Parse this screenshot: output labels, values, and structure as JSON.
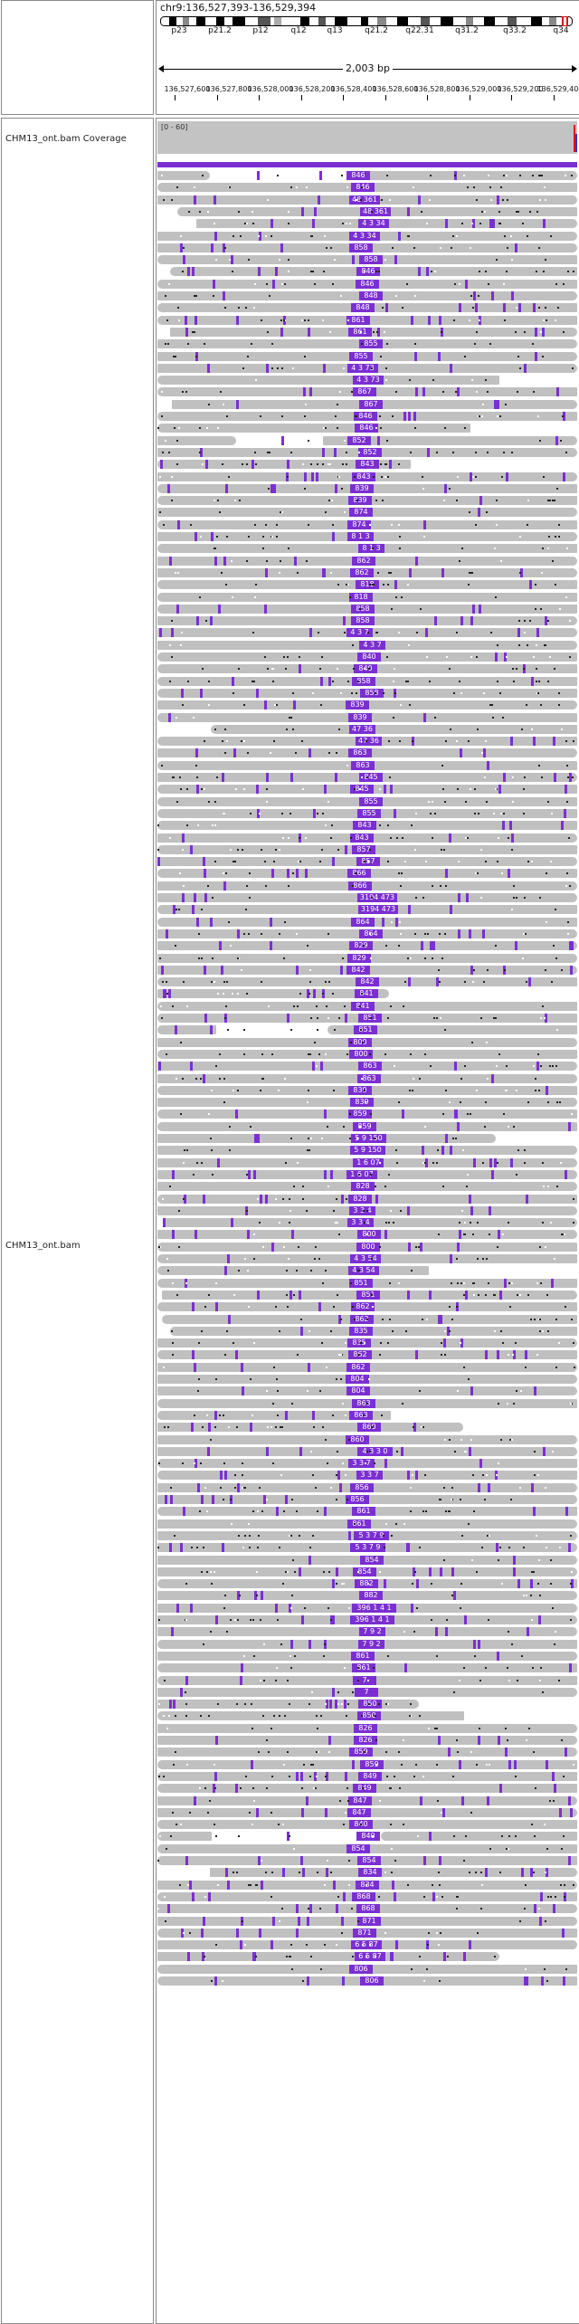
{
  "locus": "chr9:136,527,393-136,529,394",
  "ideogram": {
    "bands": [
      "p23",
      "p21.2",
      "p12",
      "q12",
      "q13",
      "q21.2",
      "q22.31",
      "q31.2",
      "q33.2",
      "q34"
    ]
  },
  "span_label": "2,003 bp",
  "ruler_ticks": [
    "136,527,600",
    "136,527,800",
    "136,528,000",
    "136,528,200",
    "136,528,400",
    "136,528,600",
    "136,528,800",
    "136,529,000",
    "136,529,200",
    "136,529,400"
  ],
  "tracks": {
    "coverage": {
      "name": "CHM13_ont.bam Coverage",
      "range": "[0 - 60]"
    },
    "alignments": {
      "name": "CHM13_ont.bam"
    }
  },
  "insertion_labels": [
    "846",
    "846",
    "48 361",
    "48 361",
    "4 3 34",
    "4 3 34",
    "858",
    "858",
    "846",
    "846",
    "848",
    "848",
    "861",
    "861",
    "855",
    "855",
    "4 3 73",
    "4 3 73",
    "867",
    "867",
    "846",
    "846",
    "852",
    "852",
    "843",
    "843",
    "839",
    "839",
    "874",
    "874",
    "8 1 3",
    "8 1 3",
    "862",
    "862",
    "818",
    "818",
    "858",
    "858",
    "4 3 7",
    "4 3 7",
    "840",
    "840",
    "858",
    "858",
    "839",
    "839",
    "47 36",
    "47 36",
    "863",
    "863",
    "845",
    "845",
    "855",
    "855",
    "843",
    "843",
    "857",
    "857",
    "866",
    "866",
    "3194 473",
    "3194 473",
    "864",
    "864",
    "829",
    "829",
    "842",
    "842",
    "841",
    "841",
    "851",
    "851",
    "800",
    "800",
    "863",
    "863",
    "839",
    "839",
    "859",
    "859",
    "5 9 150",
    "5 9 150",
    "1 6 07",
    "1 6 07",
    "828",
    "828",
    "3 3 4",
    "3 3 4",
    "800",
    "800",
    "4 3 54",
    "4 3 54",
    "851",
    "851",
    "862",
    "862",
    "835",
    "835",
    "862",
    "862",
    "804",
    "804",
    "863",
    "863",
    "860",
    "860",
    "4 3 3 0",
    "3 3 7",
    "3 3 7",
    "856",
    "856",
    "861",
    "861",
    "5 3 7 9",
    "5 3 7 9",
    "854",
    "854",
    "882",
    "882",
    "396 1 4 1",
    "396 1 4 1",
    "7 9 2",
    "7 9 2",
    "861",
    "861",
    "7",
    "7",
    "850",
    "850",
    "826",
    "826",
    "859",
    "859",
    "849",
    "849",
    "847",
    "847",
    "840",
    "840",
    "854",
    "854",
    "834",
    "834",
    "868",
    "868",
    "871",
    "871",
    "6 5 87",
    "6 5 87",
    "806",
    "806"
  ],
  "colors": {
    "insertion": "#7b2fd1",
    "read": "#c0c0c0",
    "coverage": "#c3c3c3",
    "mismatch_red": "#e01010",
    "mismatch_blue": "#1c3fcf"
  }
}
